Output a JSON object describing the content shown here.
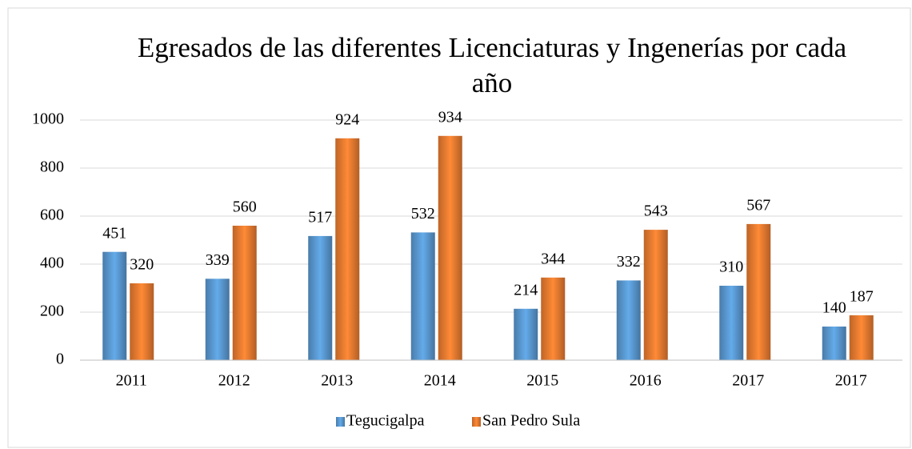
{
  "chart_data": {
    "type": "bar",
    "title": "Egresados de las diferentes Licenciaturas y Ingenerías por cada año",
    "categories": [
      "2011",
      "2012",
      "2013",
      "2014",
      "2015",
      "2016",
      "2017",
      "2017"
    ],
    "series": [
      {
        "name": "Tegucigalpa",
        "color": "#5b9bd5",
        "values": [
          451,
          339,
          517,
          532,
          214,
          332,
          310,
          140
        ]
      },
      {
        "name": "San Pedro Sula",
        "color": "#ed7d31",
        "values": [
          320,
          560,
          924,
          934,
          344,
          543,
          567,
          187
        ]
      }
    ],
    "ylim": [
      0,
      1000
    ],
    "yticks": [
      0,
      200,
      400,
      600,
      800,
      1000
    ],
    "grid": true,
    "legend": "bottom"
  }
}
